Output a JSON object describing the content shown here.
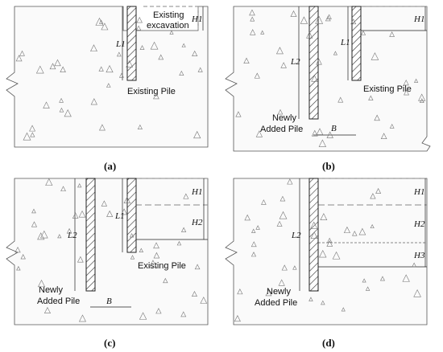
{
  "panels": {
    "a": {
      "caption": "(a)",
      "excavation_label_1": "Existing",
      "excavation_label_2": "excavation",
      "existing_pile_label": "Existing Pile",
      "dim_h1": "H1",
      "dim_l1": "L1"
    },
    "b": {
      "caption": "(b)",
      "existing_pile_label": "Existing Pile",
      "new_pile_label_1": "Newly",
      "new_pile_label_2": "Added Pile",
      "dim_h1": "H1",
      "dim_l1": "L1",
      "dim_l2": "L2",
      "dim_b": "B"
    },
    "c": {
      "caption": "(c)",
      "existing_pile_label": "Existing Pile",
      "new_pile_label_1": "Newly",
      "new_pile_label_2": "Added Pile",
      "dim_h1": "H1",
      "dim_h2": "H2",
      "dim_l1": "L1",
      "dim_l2": "L2",
      "dim_b": "B"
    },
    "d": {
      "caption": "(d)",
      "new_pile_label_1": "Newly",
      "new_pile_label_2": "Added Pile",
      "dim_h1": "H1",
      "dim_h2": "H2",
      "dim_h3": "H3",
      "dim_l2": "L2"
    }
  },
  "colors": {
    "soil_border": "#555555",
    "pile_fill": "#ffffff",
    "pile_hatch": "#333333",
    "excavation_line": "#888888"
  }
}
